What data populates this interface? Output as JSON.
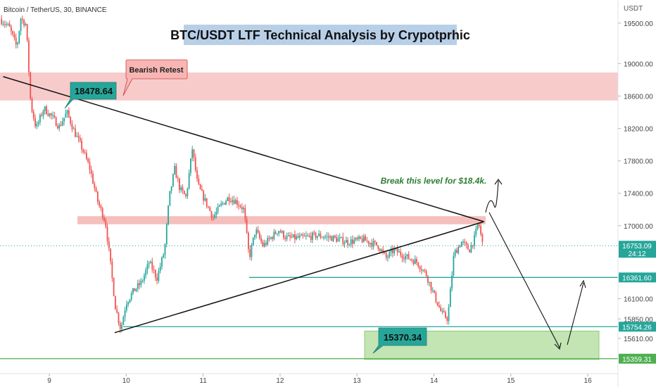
{
  "header": {
    "symbol": "Bitcoin / TetherUS, 30, BINANCE",
    "title": "BTC/USDT LTF Technical Analysis by Crypotprhic",
    "currency": "USDT"
  },
  "chart_data": {
    "type": "candlestick",
    "x_ticks": [
      {
        "label": "9",
        "x": 9
      },
      {
        "label": "10",
        "x": 10
      },
      {
        "label": "11",
        "x": 11
      },
      {
        "label": "12",
        "x": 12
      },
      {
        "label": "13",
        "x": 13
      },
      {
        "label": "14",
        "x": 14
      },
      {
        "label": "15",
        "x": 15
      },
      {
        "label": "16",
        "x": 16
      }
    ],
    "xlim": [
      8.4,
      16.4
    ],
    "ylim": [
      15175,
      19785
    ],
    "y_ticks": [
      19500,
      19000,
      18600,
      18200,
      17800,
      17400,
      17000,
      16100,
      15850,
      15610
    ],
    "y_tick_labels": [
      "19500.00",
      "19000.00",
      "18600.00",
      "18200.00",
      "17800.00",
      "17400.00",
      "17000.00",
      "16100.00",
      "15850.00",
      "15610.00"
    ],
    "price_series": [
      [
        8.38,
        19550
      ],
      [
        8.5,
        19450
      ],
      [
        8.6,
        19200
      ],
      [
        8.65,
        19560
      ],
      [
        8.72,
        19480
      ],
      [
        8.78,
        18500
      ],
      [
        8.85,
        18200
      ],
      [
        8.95,
        18450
      ],
      [
        9.05,
        18350
      ],
      [
        9.15,
        18220
      ],
      [
        9.25,
        18400
      ],
      [
        9.35,
        18150
      ],
      [
        9.45,
        17950
      ],
      [
        9.55,
        17700
      ],
      [
        9.65,
        17300
      ],
      [
        9.75,
        17050
      ],
      [
        9.82,
        16500
      ],
      [
        9.88,
        16000
      ],
      [
        9.95,
        15720
      ],
      [
        10.02,
        16050
      ],
      [
        10.12,
        16200
      ],
      [
        10.22,
        16300
      ],
      [
        10.32,
        16550
      ],
      [
        10.42,
        16350
      ],
      [
        10.52,
        16700
      ],
      [
        10.58,
        17350
      ],
      [
        10.65,
        17700
      ],
      [
        10.72,
        17450
      ],
      [
        10.8,
        17350
      ],
      [
        10.88,
        17950
      ],
      [
        10.95,
        17500
      ],
      [
        11.05,
        17300
      ],
      [
        11.15,
        17100
      ],
      [
        11.25,
        17250
      ],
      [
        11.35,
        17350
      ],
      [
        11.45,
        17300
      ],
      [
        11.55,
        17200
      ],
      [
        11.62,
        16600
      ],
      [
        11.7,
        16950
      ],
      [
        11.8,
        16750
      ],
      [
        11.9,
        16850
      ],
      [
        12.0,
        16950
      ],
      [
        12.1,
        16850
      ],
      [
        12.3,
        16850
      ],
      [
        12.5,
        16880
      ],
      [
        12.7,
        16850
      ],
      [
        12.9,
        16800
      ],
      [
        13.1,
        16830
      ],
      [
        13.3,
        16750
      ],
      [
        13.4,
        16600
      ],
      [
        13.5,
        16700
      ],
      [
        13.65,
        16620
      ],
      [
        13.8,
        16550
      ],
      [
        13.92,
        16400
      ],
      [
        14.02,
        16150
      ],
      [
        14.12,
        15920
      ],
      [
        14.2,
        15850
      ],
      [
        14.28,
        16650
      ],
      [
        14.38,
        16800
      ],
      [
        14.48,
        16700
      ],
      [
        14.55,
        16850
      ],
      [
        14.6,
        17050
      ],
      [
        14.65,
        16780
      ]
    ],
    "last_price": "16753.09",
    "countdown": "24:12",
    "levels": [
      {
        "label": "16361.60",
        "value": 16361.6,
        "color": "#26a69a"
      },
      {
        "label": "15754.26",
        "value": 15754.26,
        "color": "#26a69a"
      },
      {
        "label": "15359.31",
        "value": 15359.31,
        "color": "#4caf50"
      }
    ],
    "zones": [
      {
        "name": "bearish-retest-zone",
        "from": 18545,
        "to": 18890,
        "color": "#f7c5c5"
      },
      {
        "name": "breakout-level-zone",
        "from": 17018,
        "to": 17118,
        "color": "#f4b8b6"
      },
      {
        "name": "demand-zone",
        "from": 15350,
        "to": 15700,
        "color": "#b8dfa6"
      }
    ],
    "trendlines": [
      {
        "name": "descending-trendline",
        "from": [
          8.4,
          18840
        ],
        "to": [
          14.65,
          17050
        ]
      },
      {
        "name": "ascending-trendline",
        "from": [
          9.85,
          15680
        ],
        "to": [
          14.65,
          17050
        ]
      }
    ],
    "callouts": {
      "bearish_retest": "Bearish Retest",
      "high_price": "18478.64",
      "low_price": "15370.34",
      "break_note": "Break this level for $18.4k."
    },
    "colors": {
      "up": "#26a69a",
      "down": "#ef5350",
      "title_bg": "#b8cfe8",
      "price_tag": "#26a69a"
    }
  }
}
